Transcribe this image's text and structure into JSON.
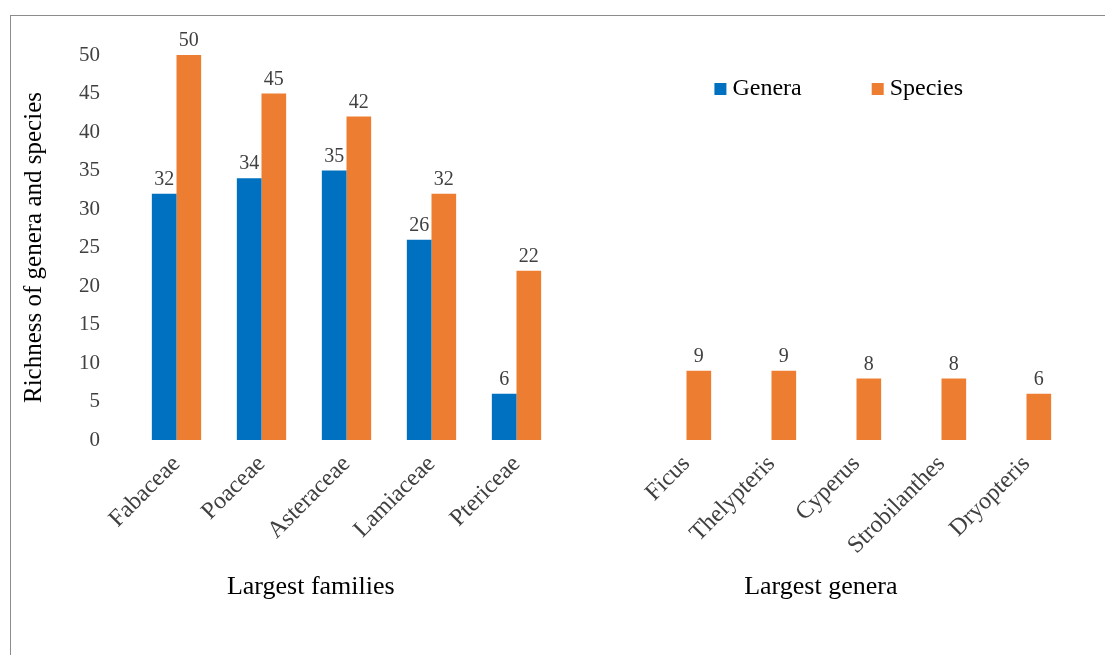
{
  "chart_data": {
    "type": "bar",
    "ylabel": "Richness of genera and species",
    "categories": [
      "Fabaceae",
      "Poaceae",
      "Asteraceae",
      "Lamiaceae",
      "Ptericeae",
      null,
      "Ficus",
      "Thelypteris",
      "Cyperus",
      "Strobilanthes",
      "Dryopteris"
    ],
    "series": [
      {
        "name": "Genera",
        "color": "#0070c0",
        "values": [
          32,
          34,
          35,
          26,
          6,
          null,
          null,
          null,
          null,
          null,
          null
        ]
      },
      {
        "name": "Species",
        "color": "#ed7d31",
        "values": [
          50,
          45,
          42,
          32,
          22,
          null,
          9,
          9,
          8,
          8,
          6
        ]
      }
    ],
    "ylim": [
      0,
      50
    ],
    "yticks": [
      0,
      5,
      10,
      15,
      20,
      25,
      30,
      35,
      40,
      45,
      50
    ],
    "legend": "top right",
    "data_labels": true,
    "annotations": [
      "Largest families",
      "Largest genera"
    ]
  }
}
